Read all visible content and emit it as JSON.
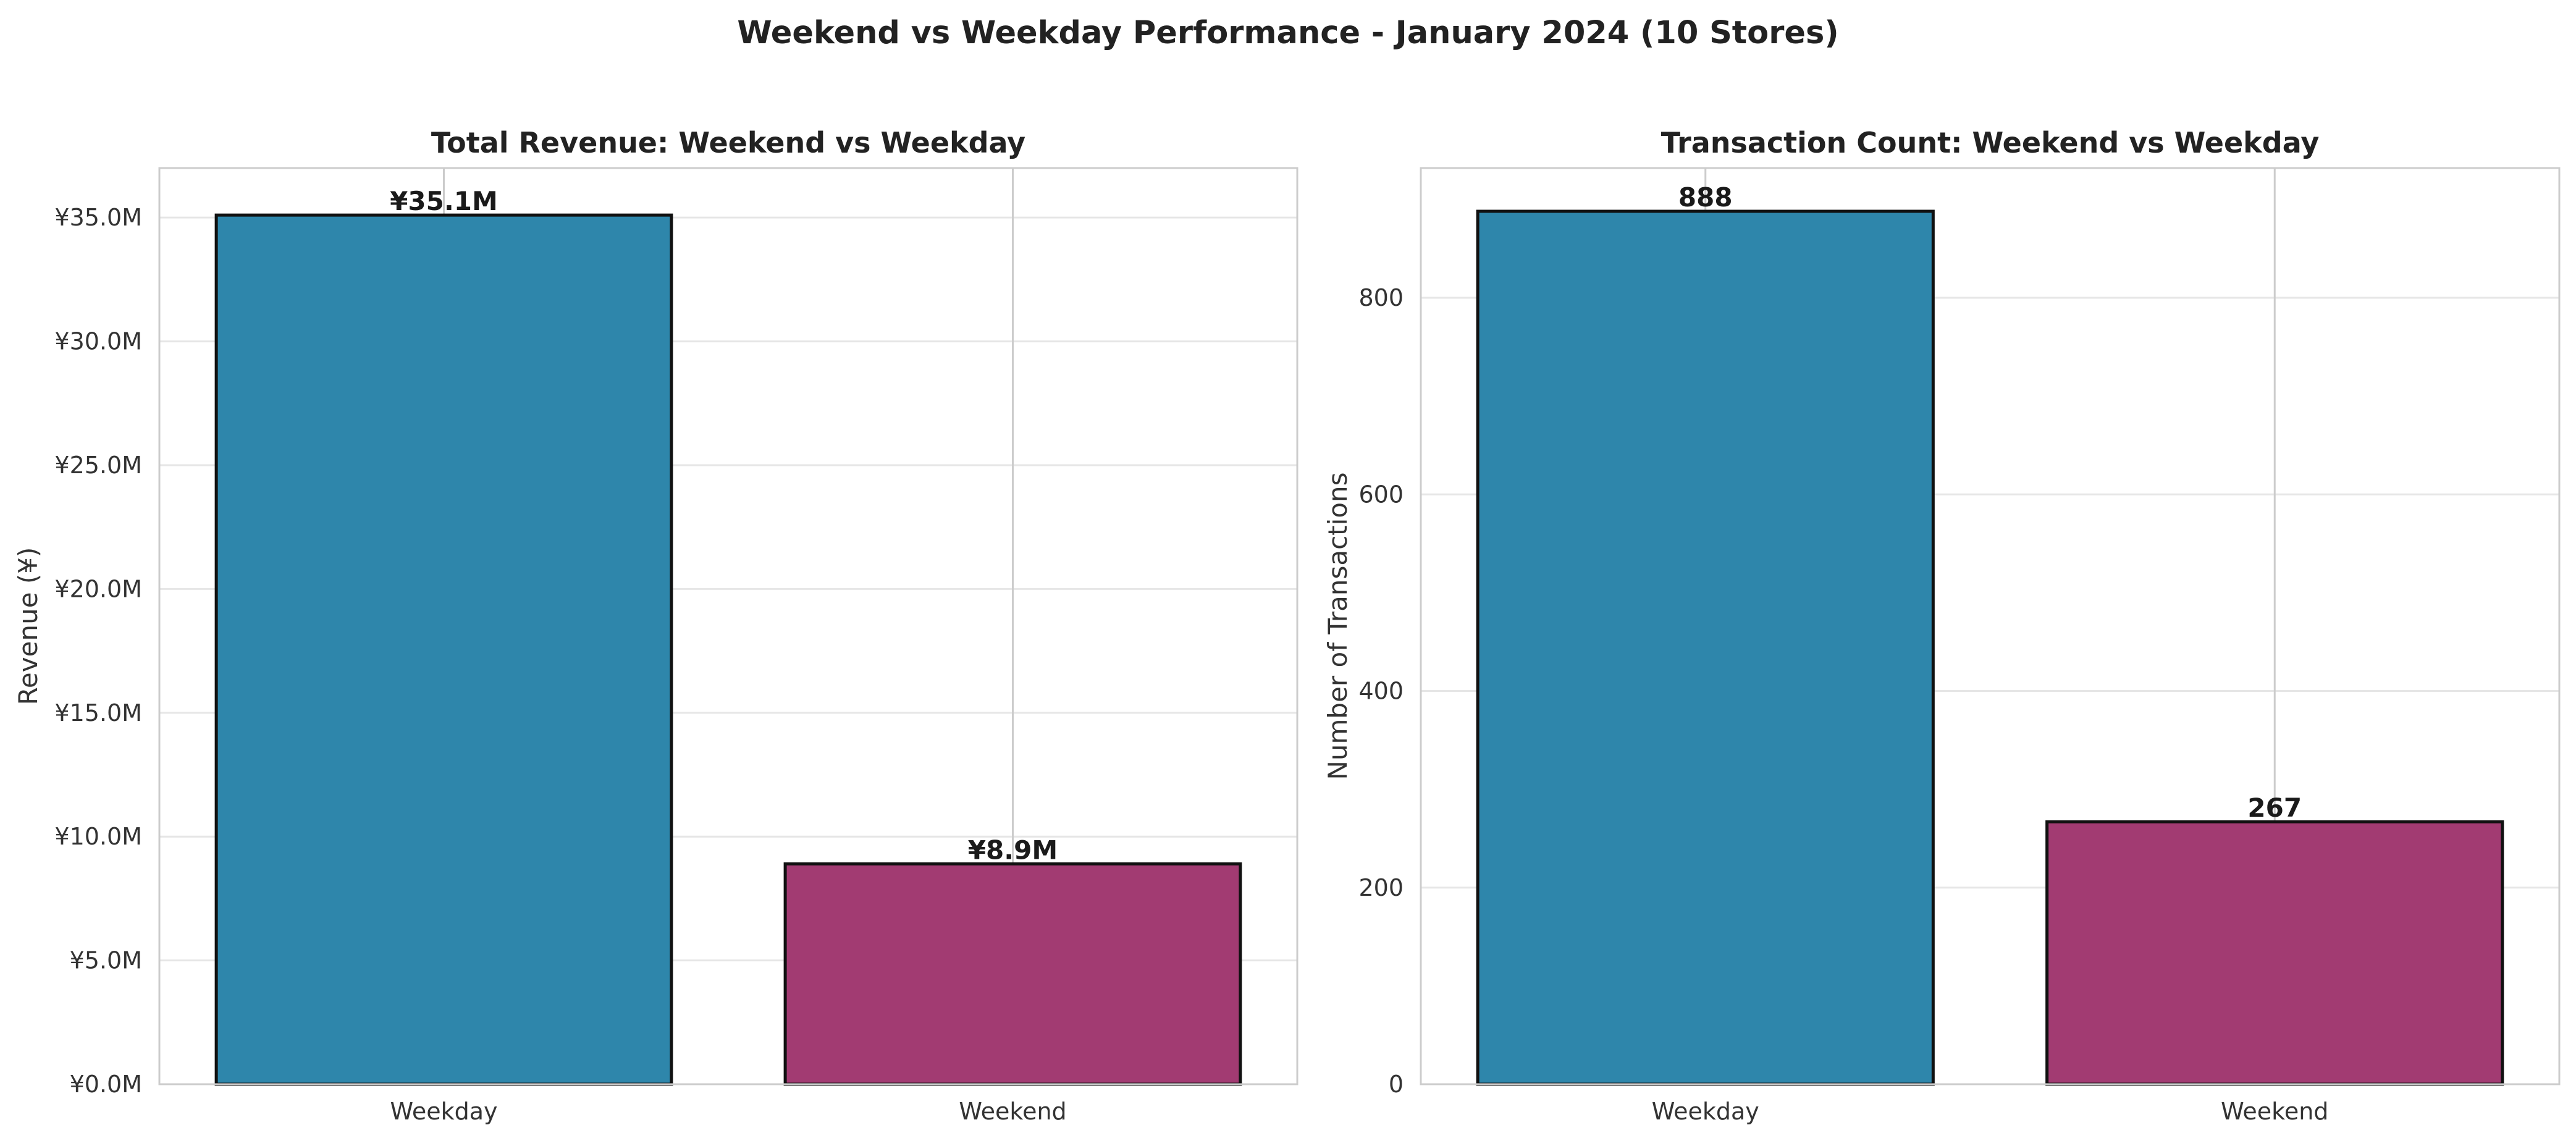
{
  "figure": {
    "title": "Weekend vs Weekday Performance - January 2024 (10 Stores)"
  },
  "chart_data": [
    {
      "type": "bar",
      "title": "Total Revenue: Weekend vs Weekday",
      "xlabel": "",
      "ylabel": "Revenue (¥)",
      "categories": [
        "Weekday",
        "Weekend"
      ],
      "values": [
        35100000,
        8900000
      ],
      "value_labels": [
        "¥35.1M",
        "¥8.9M"
      ],
      "ylim": [
        0,
        37000000
      ],
      "yticks": [
        0,
        5000000,
        10000000,
        15000000,
        20000000,
        25000000,
        30000000,
        35000000
      ],
      "ytick_labels": [
        "¥0.0M",
        "¥5.0M",
        "¥10.0M",
        "¥15.0M",
        "¥20.0M",
        "¥25.0M",
        "¥30.0M",
        "¥35.0M"
      ],
      "colors": [
        "#2e86ab",
        "#a23b72"
      ],
      "grid": true,
      "legend": "none"
    },
    {
      "type": "bar",
      "title": "Transaction Count: Weekend vs Weekday",
      "xlabel": "",
      "ylabel": "Number of Transactions",
      "categories": [
        "Weekday",
        "Weekend"
      ],
      "values": [
        888,
        267
      ],
      "value_labels": [
        "888",
        "267"
      ],
      "ylim": [
        0,
        932
      ],
      "yticks": [
        0,
        200,
        400,
        600,
        800
      ],
      "ytick_labels": [
        "0",
        "200",
        "400",
        "600",
        "800"
      ],
      "colors": [
        "#2e86ab",
        "#a23b72"
      ],
      "grid": true,
      "legend": "none"
    }
  ]
}
